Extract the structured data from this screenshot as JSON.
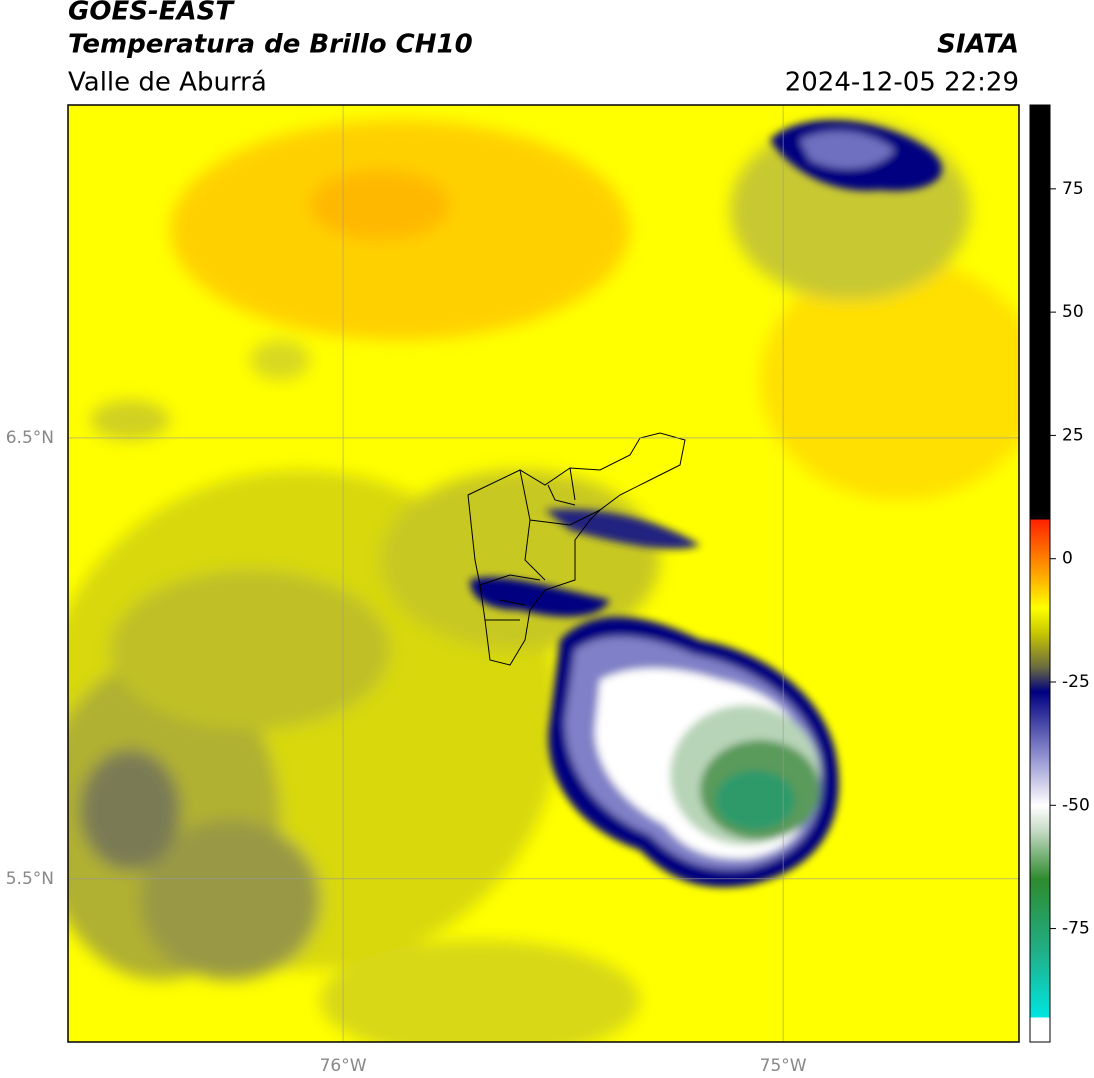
{
  "header": {
    "title": "GOES-EAST",
    "subtitle": "Temperatura de Brillo CH10",
    "region": "Valle de Aburrá",
    "source": "SIATA",
    "datetime": "2024-12-05 22:29"
  },
  "map": {
    "xlim": [
      -76.625,
      -74.464
    ],
    "ylim": [
      5.13,
      7.255
    ],
    "xticks": [
      {
        "value": -76,
        "label": "76°W"
      },
      {
        "value": -75,
        "label": "75°W"
      }
    ],
    "yticks": [
      {
        "value": 6.5,
        "label": "6.5°N"
      },
      {
        "value": 5.5,
        "label": "5.5°N"
      }
    ],
    "grid": true
  },
  "colorbar": {
    "lim": [
      -98,
      92
    ],
    "ticks": [
      75,
      50,
      25,
      0,
      -25,
      -50,
      -75
    ],
    "stops": [
      {
        "value": -98,
        "color": "#ffffff"
      },
      {
        "value": -93,
        "color": "#ffffff"
      },
      {
        "value": -93,
        "color": "#00e5e0"
      },
      {
        "value": -80,
        "color": "#20b08a"
      },
      {
        "value": -65,
        "color": "#2e8b2e"
      },
      {
        "value": -55,
        "color": "#c8dcc8"
      },
      {
        "value": -50,
        "color": "#ffffff"
      },
      {
        "value": -40,
        "color": "#9090d0"
      },
      {
        "value": -27,
        "color": "#000080"
      },
      {
        "value": -22,
        "color": "#6b6b40"
      },
      {
        "value": -15,
        "color": "#c8c800"
      },
      {
        "value": -10,
        "color": "#ffff00"
      },
      {
        "value": -3,
        "color": "#ffa500"
      },
      {
        "value": 8,
        "color": "#ff2000"
      },
      {
        "value": 8,
        "color": "#000000"
      },
      {
        "value": 92,
        "color": "#000000"
      }
    ]
  }
}
